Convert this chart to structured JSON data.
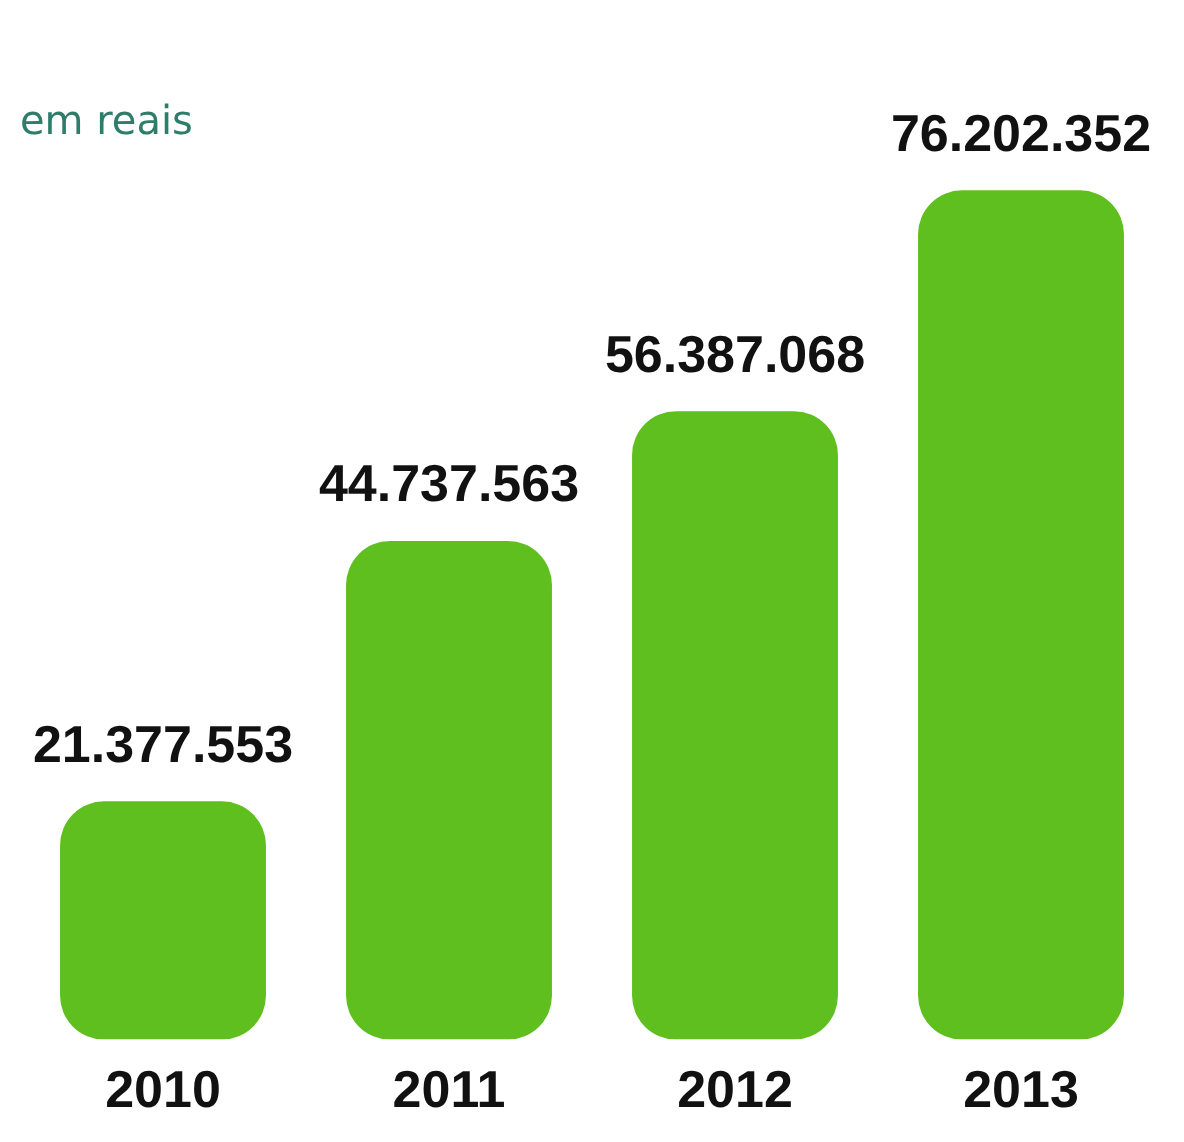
{
  "chart_data": {
    "type": "bar",
    "subtitle": "em reais",
    "categories": [
      "2010",
      "2011",
      "2012",
      "2013"
    ],
    "values": [
      21377553,
      44737563,
      56387068,
      76202352
    ],
    "value_labels": [
      "21.377.553",
      "44.737.563",
      "56.387.068",
      "76.202.352"
    ],
    "color": "#5fbf1f",
    "grid": false,
    "legend": false
  }
}
